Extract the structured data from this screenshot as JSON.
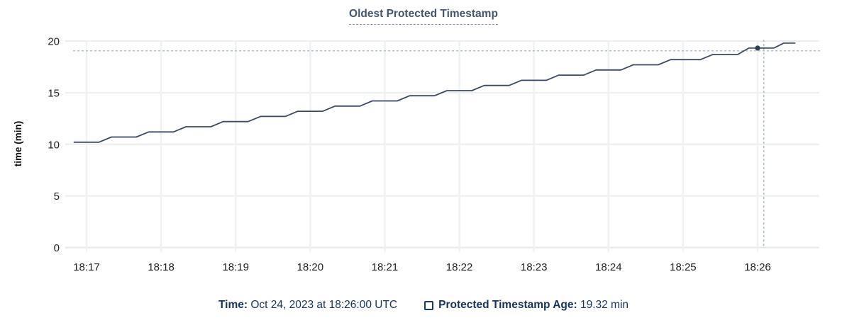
{
  "title": "Oldest Protected Timestamp",
  "legend": {
    "time_label": "Time:",
    "time_value": " Oct 24, 2023 at 18:26:00 UTC",
    "series_label": "Protected Timestamp Age:",
    "series_value": " 19.32 min"
  },
  "colors": {
    "title": "#46566e",
    "line": "#3b4a63",
    "dot": "#2e4158",
    "crosshair": "#a4bac6",
    "grid_h": "#ebedee",
    "grid_v": "#f0f1f2",
    "axis_line": "#e6e8ea",
    "axis_text": "#212121",
    "legend_text": "#16335b"
  },
  "chart_data": {
    "type": "line",
    "title": "Oldest Protected Timestamp",
    "xlabel": "",
    "ylabel": "time (min)",
    "ylim": [
      0,
      20
    ],
    "y_ticks": [
      0,
      5,
      10,
      15,
      20
    ],
    "x_unit": "seconds since 18:16:00 UTC",
    "x_ticks": [
      {
        "t": 60,
        "label": "18:17"
      },
      {
        "t": 120,
        "label": "18:18"
      },
      {
        "t": 180,
        "label": "18:19"
      },
      {
        "t": 240,
        "label": "18:20"
      },
      {
        "t": 300,
        "label": "18:21"
      },
      {
        "t": 360,
        "label": "18:22"
      },
      {
        "t": 420,
        "label": "18:23"
      },
      {
        "t": 480,
        "label": "18:24"
      },
      {
        "t": 540,
        "label": "18:25"
      },
      {
        "t": 600,
        "label": "18:26"
      }
    ],
    "grid": true,
    "legend_position": "bottom",
    "series": [
      {
        "name": "Protected Timestamp Age",
        "unit": "min",
        "points": [
          [
            50,
            10.2
          ],
          [
            70,
            10.2
          ],
          [
            80,
            10.7
          ],
          [
            100,
            10.7
          ],
          [
            110,
            11.2
          ],
          [
            130,
            11.2
          ],
          [
            140,
            11.7
          ],
          [
            160,
            11.7
          ],
          [
            170,
            12.2
          ],
          [
            190,
            12.2
          ],
          [
            200,
            12.7
          ],
          [
            220,
            12.7
          ],
          [
            230,
            13.2
          ],
          [
            250,
            13.2
          ],
          [
            260,
            13.7
          ],
          [
            280,
            13.7
          ],
          [
            290,
            14.2
          ],
          [
            310,
            14.2
          ],
          [
            320,
            14.7
          ],
          [
            340,
            14.7
          ],
          [
            350,
            15.2
          ],
          [
            370,
            15.2
          ],
          [
            380,
            15.7
          ],
          [
            400,
            15.7
          ],
          [
            410,
            16.2
          ],
          [
            430,
            16.2
          ],
          [
            440,
            16.7
          ],
          [
            460,
            16.7
          ],
          [
            470,
            17.2
          ],
          [
            490,
            17.2
          ],
          [
            500,
            17.7
          ],
          [
            520,
            17.7
          ],
          [
            530,
            18.2
          ],
          [
            554,
            18.2
          ],
          [
            564,
            18.7
          ],
          [
            584,
            18.7
          ],
          [
            593,
            19.32
          ],
          [
            613,
            19.32
          ],
          [
            621,
            19.8
          ],
          [
            630,
            19.8
          ]
        ]
      }
    ],
    "hover": {
      "point": {
        "t": 600,
        "value": 19.32
      },
      "crosshair": {
        "t": 605,
        "value": 19.05
      }
    }
  }
}
